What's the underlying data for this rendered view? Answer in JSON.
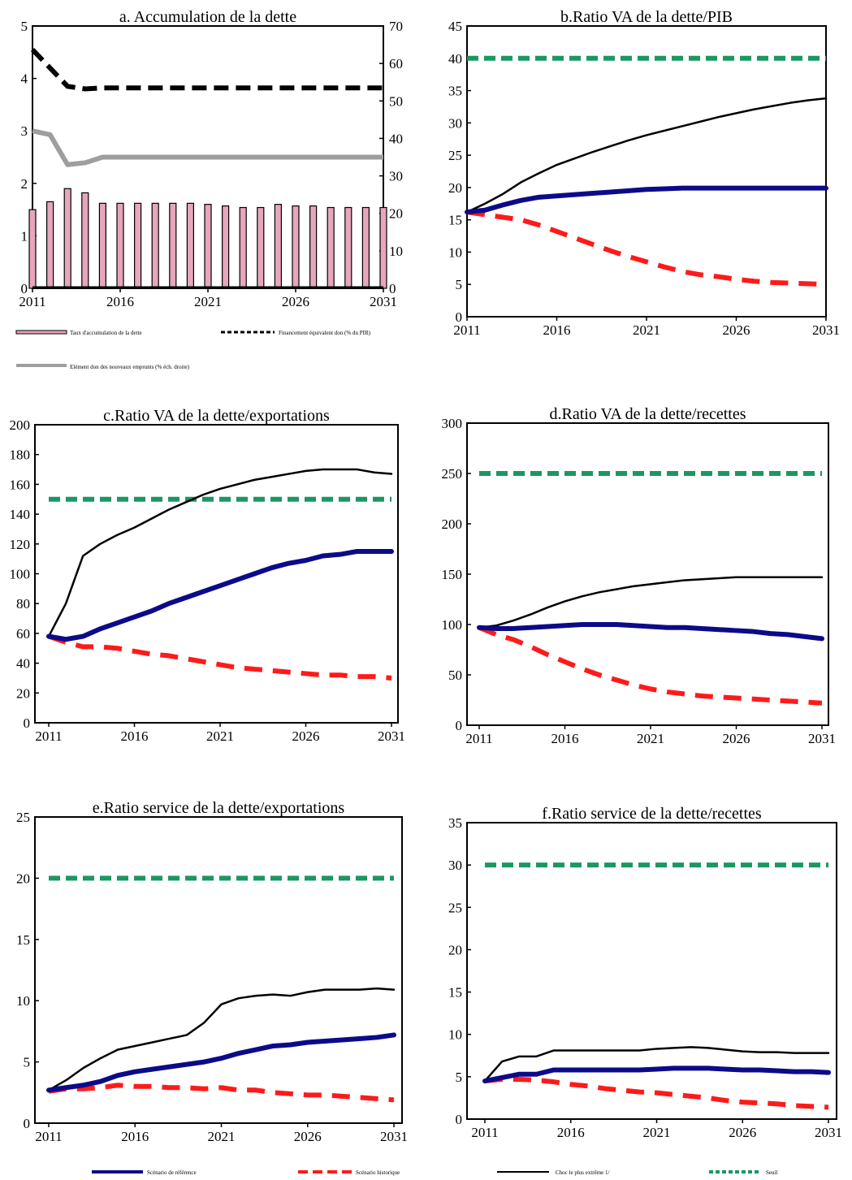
{
  "legend_a": [
    {
      "label": "Taux d'accumulation de la dette"
    },
    {
      "label": "Financement équivalent don  (% du PIB)"
    },
    {
      "label": "Elément don des nouveaux emprunts  (% éch. droite)"
    }
  ],
  "legend_bottom": [
    {
      "label": "Scénario de référence"
    },
    {
      "label": "Scénario historique"
    },
    {
      "label": "Choc le plus extrême 1/"
    },
    {
      "label": "Seuil"
    }
  ],
  "colors": {
    "baseline": "#0b0b8a",
    "historical": "#ff1a1a",
    "shock": "#000000",
    "threshold": "#1a9860",
    "grant_element": "#9e9e9e",
    "bar_fill": "#e7a6bb"
  },
  "chart_data": [
    {
      "id": "a",
      "type": "bar",
      "title": "a. Accumulation de la dette",
      "x_ticks": [
        "2011",
        "2016",
        "2021",
        "2026",
        "2031"
      ],
      "ylim": [
        0,
        5
      ],
      "y_ticks": [
        "0",
        "1",
        "2",
        "3",
        "4",
        "5"
      ],
      "y2lim": [
        0,
        70
      ],
      "y2_ticks": [
        "0",
        "10",
        "20",
        "30",
        "40",
        "50",
        "60",
        "70"
      ],
      "years": [
        2011,
        2012,
        2013,
        2014,
        2015,
        2016,
        2017,
        2018,
        2019,
        2020,
        2021,
        2022,
        2023,
        2024,
        2025,
        2026,
        2027,
        2028,
        2029,
        2030,
        2031
      ],
      "series": [
        {
          "name": "Taux d'accumulation de la dette",
          "kind": "bar",
          "axis": "left",
          "values": [
            1.5,
            1.65,
            1.9,
            1.82,
            1.62,
            1.62,
            1.62,
            1.62,
            1.62,
            1.62,
            1.6,
            1.57,
            1.54,
            1.54,
            1.6,
            1.57,
            1.57,
            1.54,
            1.54,
            1.54,
            1.54
          ]
        },
        {
          "name": "Financement équivalent don  (% du PIB)",
          "kind": "line",
          "axis": "left",
          "values": [
            4.55,
            4.2,
            3.85,
            3.8,
            3.82,
            3.82,
            3.82,
            3.82,
            3.82,
            3.82,
            3.82,
            3.82,
            3.82,
            3.82,
            3.82,
            3.82,
            3.82,
            3.82,
            3.82,
            3.82,
            3.82
          ]
        },
        {
          "name": "Elément don des nouveaux emprunts  (% éch. droite)",
          "kind": "line",
          "axis": "right",
          "values": [
            42,
            41,
            33,
            33.5,
            35,
            35,
            35,
            35,
            35,
            35,
            35,
            35,
            35,
            35,
            35,
            35,
            35,
            35,
            35,
            35,
            35
          ]
        }
      ]
    },
    {
      "id": "b",
      "type": "line",
      "title": "b.Ratio VA de la dette/PIB",
      "x_ticks": [
        "2011",
        "2016",
        "2021",
        "2026",
        "2031"
      ],
      "ylim": [
        0,
        45
      ],
      "y_ticks": [
        "0",
        "5",
        "10",
        "15",
        "20",
        "25",
        "30",
        "35",
        "40",
        "45"
      ],
      "years": [
        2011,
        2012,
        2013,
        2014,
        2015,
        2016,
        2017,
        2018,
        2019,
        2020,
        2021,
        2022,
        2023,
        2024,
        2025,
        2026,
        2027,
        2028,
        2029,
        2030,
        2031
      ],
      "series": [
        {
          "name": "Scénario de référence",
          "values": [
            16.2,
            16.5,
            17.3,
            18,
            18.5,
            18.7,
            18.9,
            19.1,
            19.3,
            19.5,
            19.7,
            19.8,
            19.9,
            19.9,
            19.9,
            19.9,
            19.9,
            19.9,
            19.9,
            19.9,
            19.9
          ]
        },
        {
          "name": "Scénario historique",
          "values": [
            16.2,
            15.8,
            15.4,
            15,
            14.2,
            13.2,
            12.2,
            11.2,
            10.2,
            9.3,
            8.5,
            7.7,
            7,
            6.5,
            6.2,
            5.8,
            5.5,
            5.3,
            5.2,
            5.1,
            5
          ]
        },
        {
          "name": "Choc le plus extrême 1/",
          "values": [
            16.2,
            17.5,
            19,
            20.8,
            22.2,
            23.5,
            24.5,
            25.5,
            26.4,
            27.3,
            28.1,
            28.8,
            29.5,
            30.2,
            30.9,
            31.5,
            32.1,
            32.6,
            33.1,
            33.5,
            33.8
          ]
        },
        {
          "name": "Seuil",
          "values": [
            40,
            40,
            40,
            40,
            40,
            40,
            40,
            40,
            40,
            40,
            40,
            40,
            40,
            40,
            40,
            40,
            40,
            40,
            40,
            40,
            40
          ]
        }
      ]
    },
    {
      "id": "c",
      "type": "line",
      "title": "c.Ratio VA de la dette/exportations",
      "x_ticks": [
        "2011",
        "2016",
        "2021",
        "2026",
        "2031"
      ],
      "ylim": [
        0,
        200
      ],
      "y_ticks": [
        "0",
        "20",
        "40",
        "60",
        "80",
        "100",
        "120",
        "140",
        "160",
        "180",
        "200"
      ],
      "years": [
        2011,
        2012,
        2013,
        2014,
        2015,
        2016,
        2017,
        2018,
        2019,
        2020,
        2021,
        2022,
        2023,
        2024,
        2025,
        2026,
        2027,
        2028,
        2029,
        2030,
        2031
      ],
      "series": [
        {
          "name": "Scénario de référence",
          "values": [
            58,
            56,
            58,
            63,
            67,
            71,
            75,
            80,
            84,
            88,
            92,
            96,
            100,
            104,
            107,
            109,
            112,
            113,
            115,
            115,
            115
          ]
        },
        {
          "name": "Scénario historique",
          "values": [
            58,
            54,
            51,
            51,
            50,
            48,
            46,
            45,
            43,
            41,
            39,
            37,
            36,
            35,
            34,
            33,
            32,
            32,
            31,
            31,
            30
          ]
        },
        {
          "name": "Choc le plus extrême 1/",
          "values": [
            58,
            80,
            112,
            120,
            126,
            131,
            137,
            143,
            148,
            153,
            157,
            160,
            163,
            165,
            167,
            169,
            170,
            170,
            170,
            168,
            167
          ]
        },
        {
          "name": "Seuil",
          "values": [
            150,
            150,
            150,
            150,
            150,
            150,
            150,
            150,
            150,
            150,
            150,
            150,
            150,
            150,
            150,
            150,
            150,
            150,
            150,
            150,
            150
          ]
        }
      ]
    },
    {
      "id": "d",
      "type": "line",
      "title": "d.Ratio VA de la dette/recettes",
      "x_ticks": [
        "2011",
        "2016",
        "2021",
        "2026",
        "2031"
      ],
      "ylim": [
        0,
        300
      ],
      "y_ticks": [
        "0",
        "50",
        "100",
        "150",
        "200",
        "250",
        "300"
      ],
      "years": [
        2011,
        2012,
        2013,
        2014,
        2015,
        2016,
        2017,
        2018,
        2019,
        2020,
        2021,
        2022,
        2023,
        2024,
        2025,
        2026,
        2027,
        2028,
        2029,
        2030,
        2031
      ],
      "series": [
        {
          "name": "Scénario de référence",
          "values": [
            97,
            96,
            96,
            97,
            98,
            99,
            100,
            100,
            100,
            99,
            98,
            97,
            97,
            96,
            95,
            94,
            93,
            91,
            90,
            88,
            86
          ]
        },
        {
          "name": "Scénario historique",
          "values": [
            97,
            90,
            85,
            78,
            70,
            63,
            56,
            50,
            45,
            40,
            36,
            33,
            31,
            29,
            28,
            27,
            26,
            25,
            24,
            23,
            22
          ]
        },
        {
          "name": "Choc le plus extrême 1/",
          "values": [
            97,
            99,
            104,
            110,
            117,
            123,
            128,
            132,
            135,
            138,
            140,
            142,
            144,
            145,
            146,
            147,
            147,
            147,
            147,
            147,
            147
          ]
        },
        {
          "name": "Seuil",
          "values": [
            250,
            250,
            250,
            250,
            250,
            250,
            250,
            250,
            250,
            250,
            250,
            250,
            250,
            250,
            250,
            250,
            250,
            250,
            250,
            250,
            250
          ]
        }
      ]
    },
    {
      "id": "e",
      "type": "line",
      "title": "e.Ratio service de la dette/exportations",
      "x_ticks": [
        "2011",
        "2016",
        "2021",
        "2026",
        "2031"
      ],
      "ylim": [
        0,
        25
      ],
      "y_ticks": [
        "0",
        "5",
        "10",
        "15",
        "20",
        "25"
      ],
      "years": [
        2011,
        2012,
        2013,
        2014,
        2015,
        2016,
        2017,
        2018,
        2019,
        2020,
        2021,
        2022,
        2023,
        2024,
        2025,
        2026,
        2027,
        2028,
        2029,
        2030,
        2031
      ],
      "series": [
        {
          "name": "Scénario de référence",
          "values": [
            2.7,
            2.9,
            3.1,
            3.4,
            3.9,
            4.2,
            4.4,
            4.6,
            4.8,
            5.0,
            5.3,
            5.7,
            6.0,
            6.3,
            6.4,
            6.6,
            6.7,
            6.8,
            6.9,
            7.0,
            7.2
          ]
        },
        {
          "name": "Scénario historique",
          "values": [
            2.6,
            2.8,
            2.8,
            2.9,
            3.1,
            3.0,
            3.0,
            2.9,
            2.9,
            2.8,
            2.9,
            2.7,
            2.7,
            2.5,
            2.4,
            2.3,
            2.3,
            2.2,
            2.1,
            2.0,
            1.9
          ]
        },
        {
          "name": "Choc le plus extrême 1/",
          "values": [
            2.7,
            3.5,
            4.5,
            5.3,
            6.0,
            6.3,
            6.6,
            6.9,
            7.2,
            8.2,
            9.7,
            10.2,
            10.4,
            10.5,
            10.4,
            10.7,
            10.9,
            10.9,
            10.9,
            11.0,
            10.9
          ]
        },
        {
          "name": "Seuil",
          "values": [
            20,
            20,
            20,
            20,
            20,
            20,
            20,
            20,
            20,
            20,
            20,
            20,
            20,
            20,
            20,
            20,
            20,
            20,
            20,
            20,
            20
          ]
        }
      ]
    },
    {
      "id": "f",
      "type": "line",
      "title": "f.Ratio service de la dette/recettes",
      "x_ticks": [
        "2011",
        "2016",
        "2021",
        "2026",
        "2031"
      ],
      "ylim": [
        0,
        35
      ],
      "y_ticks": [
        "0",
        "5",
        "10",
        "15",
        "20",
        "25",
        "30",
        "35"
      ],
      "years": [
        2011,
        2012,
        2013,
        2014,
        2015,
        2016,
        2017,
        2018,
        2019,
        2020,
        2021,
        2022,
        2023,
        2024,
        2025,
        2026,
        2027,
        2028,
        2029,
        2030,
        2031
      ],
      "series": [
        {
          "name": "Scénario de référence",
          "values": [
            4.5,
            4.9,
            5.3,
            5.3,
            5.8,
            5.8,
            5.8,
            5.8,
            5.8,
            5.8,
            5.9,
            6.0,
            6.0,
            6.0,
            5.9,
            5.8,
            5.8,
            5.7,
            5.6,
            5.6,
            5.5
          ]
        },
        {
          "name": "Scénario historique",
          "values": [
            4.5,
            4.7,
            4.7,
            4.6,
            4.4,
            4.1,
            3.9,
            3.6,
            3.4,
            3.2,
            3.1,
            2.9,
            2.7,
            2.5,
            2.2,
            2.0,
            1.9,
            1.8,
            1.6,
            1.5,
            1.4
          ]
        },
        {
          "name": "Choc le plus extrême 1/",
          "values": [
            4.5,
            6.8,
            7.4,
            7.4,
            8.1,
            8.1,
            8.1,
            8.1,
            8.1,
            8.1,
            8.3,
            8.4,
            8.5,
            8.4,
            8.2,
            8.0,
            7.9,
            7.9,
            7.8,
            7.8,
            7.8
          ]
        },
        {
          "name": "Seuil",
          "values": [
            30,
            30,
            30,
            30,
            30,
            30,
            30,
            30,
            30,
            30,
            30,
            30,
            30,
            30,
            30,
            30,
            30,
            30,
            30,
            30,
            30
          ]
        }
      ]
    }
  ]
}
